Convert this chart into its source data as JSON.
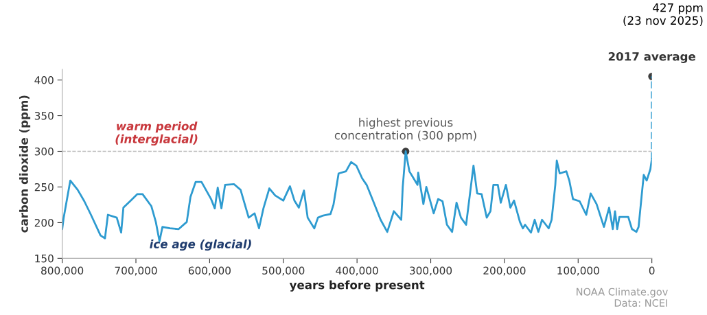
{
  "chart_data": {
    "type": "line",
    "xlabel": "years before present",
    "ylabel": "carbon dioxide (ppm)",
    "xlim": [
      800000,
      0
    ],
    "ylim": [
      150,
      415
    ],
    "xticks": [
      {
        "value": 800000,
        "label": "800,000"
      },
      {
        "value": 700000,
        "label": "700,000"
      },
      {
        "value": 600000,
        "label": "600,000"
      },
      {
        "value": 500000,
        "label": "500,000"
      },
      {
        "value": 400000,
        "label": "400,000"
      },
      {
        "value": 300000,
        "label": "300,000"
      },
      {
        "value": 200000,
        "label": "200,000"
      },
      {
        "value": 100000,
        "label": "100,000"
      },
      0
    ],
    "yticks": [
      150,
      200,
      250,
      300,
      350,
      400
    ],
    "grid": false,
    "legend": false,
    "ref_lines": [
      {
        "axis": "y",
        "value": 300,
        "color": "#bbbbbb",
        "line_style": "dashed"
      }
    ],
    "series": [
      {
        "color": "#2e9bd0",
        "line_style": "solid",
        "marker": "none",
        "x": [
          800000,
          798000,
          789000,
          779000,
          770000,
          761000,
          748000,
          742000,
          738000,
          726000,
          720000,
          717000,
          707000,
          698000,
          691000,
          679000,
          673000,
          668000,
          664000,
          654000,
          642000,
          631000,
          626000,
          619000,
          611000,
          598000,
          593000,
          589000,
          584000,
          579000,
          567000,
          558000,
          547000,
          539000,
          533000,
          527000,
          519000,
          511000,
          500000,
          491000,
          485000,
          479000,
          472000,
          467000,
          458000,
          453000,
          446000,
          436000,
          432000,
          425000,
          415000,
          408000,
          401000,
          393000,
          387000,
          378000,
          368000,
          359000,
          350000,
          340000,
          338000,
          334000,
          329000,
          318000,
          317000,
          310000,
          306000,
          296000,
          290000,
          284000,
          278000,
          271000,
          265000,
          259000,
          252000,
          242000,
          237000,
          231000,
          224000,
          219000,
          215000,
          209000,
          205000,
          198000,
          192000,
          187000,
          179000,
          175000,
          172000,
          164000,
          159000,
          154000,
          149000,
          140000,
          136000,
          131000,
          129000,
          125000,
          116000,
          112000,
          107000,
          98000,
          89000,
          83000,
          75000,
          65000,
          58000,
          53000,
          50000,
          47000,
          44000,
          32000,
          27000,
          21000,
          18000,
          14000,
          11000,
          7000,
          2000,
          0
        ],
        "values": [
          191,
          207,
          259,
          246,
          230,
          211,
          182,
          178,
          211,
          207,
          186,
          221,
          231,
          240,
          240,
          223,
          201,
          174,
          194,
          192,
          191,
          201,
          236,
          257,
          257,
          233,
          220,
          249,
          220,
          253,
          254,
          246,
          207,
          213,
          192,
          220,
          248,
          238,
          231,
          251,
          231,
          221,
          245,
          207,
          192,
          207,
          210,
          212,
          225,
          269,
          272,
          285,
          280,
          262,
          253,
          230,
          204,
          187,
          216,
          204,
          250,
          300,
          272,
          253,
          270,
          226,
          250,
          213,
          233,
          230,
          197,
          187,
          228,
          207,
          197,
          280,
          241,
          240,
          207,
          216,
          253,
          253,
          228,
          253,
          221,
          231,
          201,
          192,
          197,
          186,
          204,
          187,
          204,
          192,
          204,
          253,
          287,
          269,
          272,
          259,
          233,
          230,
          211,
          241,
          226,
          194,
          221,
          191,
          216,
          191,
          208,
          208,
          191,
          187,
          194,
          236,
          267,
          259,
          275,
          289
        ]
      },
      {
        "type": "line",
        "color": "#2e9bd0",
        "line_style": "dashed",
        "marker": "none",
        "x": [
          0,
          0
        ],
        "values": [
          289,
          405
        ]
      },
      {
        "type": "scatter",
        "color": "#3d3d3d",
        "marker": "circle",
        "x": [
          334000,
          0
        ],
        "values": [
          300,
          405
        ]
      }
    ],
    "annotations": [
      {
        "text": "2017 average",
        "x": 0,
        "y": 405
      },
      {
        "text": "highest previous\nconcentration (300 ppm)",
        "x": 334000,
        "y": 300
      },
      "warm period\n(interglacial)",
      "ice age (glacial)",
      "427 ppm\n(23 nov 2025)",
      "NOAA Climate.gov\nData: NCEI"
    ]
  }
}
